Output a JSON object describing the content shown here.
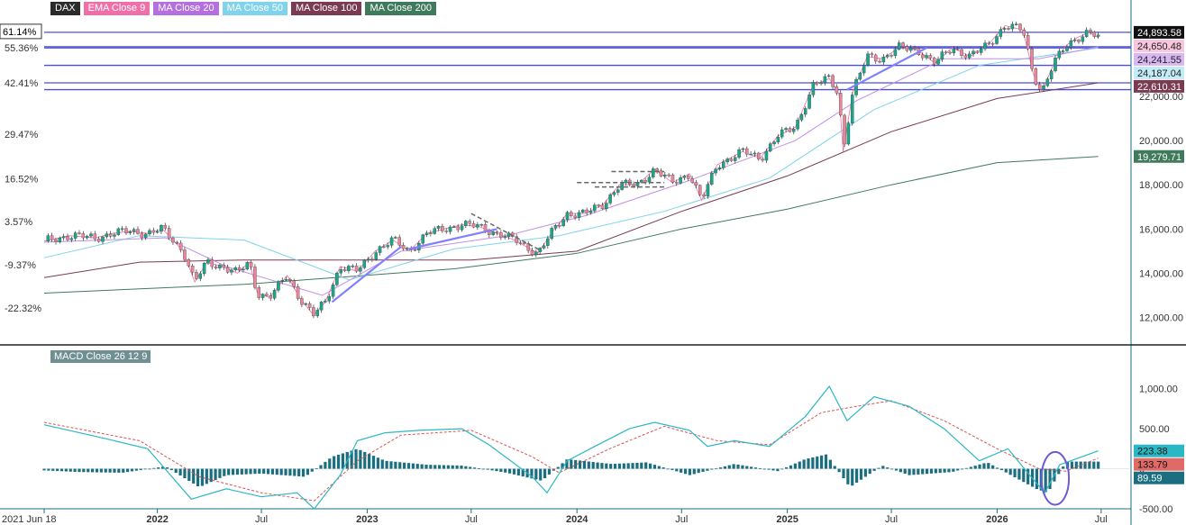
{
  "legend": [
    {
      "label": "DAX",
      "color": "#2b2b2b"
    },
    {
      "label": "EMA Close 9",
      "color": "#ef6fa8"
    },
    {
      "label": "MA Close 20",
      "color": "#b46fe0"
    },
    {
      "label": "MA Close 50",
      "color": "#7fd3ea"
    },
    {
      "label": "MA Close 100",
      "color": "#7a3b52"
    },
    {
      "label": "MA Close 200",
      "color": "#3f7a5c"
    }
  ],
  "macd_legend": "MACD  Close 26 12 9",
  "colors": {
    "up_candle": "#19a689",
    "down_candle": "#e8879a",
    "level_line": "#4b4fd6",
    "trend_line": "#8080ff",
    "dashed": "#666666",
    "macd_line": "#2bb7c4",
    "signal_line": "#d9534f",
    "histogram": "#1a6e80",
    "axis": "#1a6e80"
  },
  "chart_data": [
    {
      "type": "candlestick",
      "title": "DAX",
      "x_ticks": [
        "2021 Jun 18",
        "2022",
        "Jul",
        "2023",
        "Jul",
        "2024",
        "Jul",
        "2025",
        "Jul",
        "2026",
        "Jul"
      ],
      "x_tick_dates": [
        "2021-06-18",
        "2022-01-01",
        "2022-07-01",
        "2023-01-01",
        "2023-07-01",
        "2024-01-01",
        "2024-07-01",
        "2025-01-01",
        "2025-07-01",
        "2026-01-01",
        "2026-07-01"
      ],
      "x_range": [
        "2021-06-18",
        "2026-08-22"
      ],
      "y_range": [
        10800,
        25500
      ],
      "y_ticks_right": [
        "22,000.00",
        "20,000.00",
        "18,000.00",
        "16,000.00",
        "14,000.00",
        "12,000.00"
      ],
      "y_tick_values": [
        22000,
        20000,
        18000,
        16000,
        14000,
        12000
      ],
      "pct_ticks_left": [
        "61.14%",
        "55.36%",
        "42.41%",
        "29.47%",
        "16.52%",
        "3.57%",
        "-9.37%",
        "-22.32%"
      ],
      "pct_tick_values": [
        24893.58,
        24187.04,
        22610.31,
        20279.71,
        18281.0,
        16330.0,
        14380.0,
        12425.0
      ],
      "horizontal_levels": [
        24893.58,
        24241.55,
        24187.04,
        23400,
        22610.31,
        22300
      ],
      "price_labels": [
        {
          "text": "24,893.58",
          "value": 24893.58,
          "bg": "#111111",
          "fg": "#ffffff"
        },
        {
          "text": "24,650.48",
          "value": 24650.48,
          "bg": "#f7c6dc",
          "fg": "#222222"
        },
        {
          "text": "24,241.55",
          "value": 24241.55,
          "bg": "#d9b7f3",
          "fg": "#222222"
        },
        {
          "text": "24,187.04",
          "value": 24187.04,
          "bg": "#c4ecf7",
          "fg": "#222222"
        },
        {
          "text": "22,610.31",
          "value": 22610.31,
          "bg": "#7a3b52",
          "fg": "#ffffff"
        },
        {
          "text": "19,279.71",
          "value": 19279.71,
          "bg": "#3f7a5c",
          "fg": "#ffffff"
        }
      ],
      "close_series": [
        [
          "2021-06-18",
          15450
        ],
        [
          "2021-08-01",
          15700
        ],
        [
          "2021-09-15",
          15600
        ],
        [
          "2021-10-15",
          15800
        ],
        [
          "2021-11-15",
          15900
        ],
        [
          "2021-12-15",
          15800
        ],
        [
          "2022-01-10",
          16000
        ],
        [
          "2022-02-15",
          15000
        ],
        [
          "2022-03-07",
          13600
        ],
        [
          "2022-03-28",
          14500
        ],
        [
          "2022-04-25",
          14300
        ],
        [
          "2022-05-20",
          14000
        ],
        [
          "2022-06-10",
          14500
        ],
        [
          "2022-06-24",
          13100
        ],
        [
          "2022-07-15",
          12900
        ],
        [
          "2022-08-15",
          13900
        ],
        [
          "2022-09-05",
          12900
        ],
        [
          "2022-09-30",
          12100
        ],
        [
          "2022-10-20",
          12700
        ],
        [
          "2022-11-15",
          14300
        ],
        [
          "2022-12-15",
          14100
        ],
        [
          "2023-01-15",
          15000
        ],
        [
          "2023-02-15",
          15500
        ],
        [
          "2023-03-15",
          15000
        ],
        [
          "2023-04-15",
          15800
        ],
        [
          "2023-05-15",
          16000
        ],
        [
          "2023-06-15",
          16200
        ],
        [
          "2023-07-15",
          16100
        ],
        [
          "2023-08-15",
          15800
        ],
        [
          "2023-09-15",
          15500
        ],
        [
          "2023-10-25",
          14900
        ],
        [
          "2023-11-20",
          15900
        ],
        [
          "2023-12-15",
          16700
        ],
        [
          "2024-01-15",
          16700
        ],
        [
          "2024-02-15",
          17100
        ],
        [
          "2024-03-15",
          18000
        ],
        [
          "2024-04-15",
          18000
        ],
        [
          "2024-05-15",
          18700
        ],
        [
          "2024-06-15",
          18100
        ],
        [
          "2024-07-15",
          18500
        ],
        [
          "2024-08-05",
          17300
        ],
        [
          "2024-09-01",
          18900
        ],
        [
          "2024-10-15",
          19500
        ],
        [
          "2024-11-15",
          19200
        ],
        [
          "2024-12-15",
          20200
        ],
        [
          "2025-01-15",
          20600
        ],
        [
          "2025-02-15",
          22500
        ],
        [
          "2025-03-15",
          22800
        ],
        [
          "2025-04-01",
          22100
        ],
        [
          "2025-04-08",
          19500
        ],
        [
          "2025-04-25",
          22200
        ],
        [
          "2025-05-20",
          23800
        ],
        [
          "2025-06-15",
          23700
        ],
        [
          "2025-07-15",
          24200
        ],
        [
          "2025-08-15",
          24100
        ],
        [
          "2025-09-15",
          23500
        ],
        [
          "2025-10-15",
          24200
        ],
        [
          "2025-11-15",
          23800
        ],
        [
          "2025-12-15",
          24300
        ],
        [
          "2026-01-15",
          25200
        ],
        [
          "2026-02-15",
          25000
        ],
        [
          "2026-03-05",
          23000
        ],
        [
          "2026-03-20",
          22200
        ],
        [
          "2026-04-10",
          23500
        ],
        [
          "2026-05-01",
          24300
        ],
        [
          "2026-05-20",
          24650
        ],
        [
          "2026-06-10",
          24893.58
        ],
        [
          "2026-06-26",
          24650.48
        ]
      ],
      "moving_averages": [
        {
          "name": "MA Close 200",
          "points": [
            [
              "2021-06-18",
              13100
            ],
            [
              "2022-06-01",
              13500
            ],
            [
              "2023-06-01",
              14200
            ],
            [
              "2024-01-01",
              14900
            ],
            [
              "2024-07-01",
              16000
            ],
            [
              "2025-01-01",
              16900
            ],
            [
              "2025-07-01",
              18000
            ],
            [
              "2026-01-01",
              19000
            ],
            [
              "2026-06-26",
              19279.71
            ]
          ]
        },
        {
          "name": "MA Close 100",
          "points": [
            [
              "2021-06-18",
              13800
            ],
            [
              "2021-12-01",
              14500
            ],
            [
              "2022-06-01",
              14600
            ],
            [
              "2023-01-01",
              14600
            ],
            [
              "2023-07-01",
              14600
            ],
            [
              "2024-01-01",
              15000
            ],
            [
              "2024-07-01",
              16800
            ],
            [
              "2025-01-01",
              18400
            ],
            [
              "2025-07-01",
              20400
            ],
            [
              "2026-01-01",
              21900
            ],
            [
              "2026-06-26",
              22610.31
            ]
          ]
        },
        {
          "name": "MA Close 50",
          "points": [
            [
              "2021-06-18",
              14700
            ],
            [
              "2021-12-01",
              15700
            ],
            [
              "2022-06-01",
              15500
            ],
            [
              "2022-12-01",
              13700
            ],
            [
              "2023-06-01",
              15100
            ],
            [
              "2023-12-01",
              15700
            ],
            [
              "2024-06-01",
              16800
            ],
            [
              "2024-12-01",
              18300
            ],
            [
              "2025-06-01",
              21400
            ],
            [
              "2025-12-01",
              23400
            ],
            [
              "2026-06-26",
              24187.04
            ]
          ]
        },
        {
          "name": "MA Close 20",
          "points": [
            [
              "2021-06-18",
              15400
            ],
            [
              "2022-01-15",
              15600
            ],
            [
              "2022-05-01",
              14300
            ],
            [
              "2022-10-15",
              13000
            ],
            [
              "2023-03-01",
              15000
            ],
            [
              "2023-09-01",
              15700
            ],
            [
              "2024-01-15",
              16600
            ],
            [
              "2024-07-15",
              18200
            ],
            [
              "2025-01-15",
              20000
            ],
            [
              "2025-05-01",
              21800
            ],
            [
              "2025-10-01",
              23700
            ],
            [
              "2026-03-15",
              23700
            ],
            [
              "2026-06-26",
              24241.55
            ]
          ]
        }
      ],
      "trend_lines": [
        {
          "from": [
            "2022-11-01",
            12700
          ],
          "to": [
            "2023-03-01",
            15200
          ],
          "style": "solid"
        },
        {
          "from": [
            "2023-03-15",
            15100
          ],
          "to": [
            "2023-08-15",
            16000
          ],
          "style": "solid"
        },
        {
          "from": [
            "2025-04-15",
            22300
          ],
          "to": [
            "2025-09-01",
            24200
          ],
          "style": "solid"
        },
        {
          "from": [
            "2023-07-01",
            16700
          ],
          "to": [
            "2023-11-01",
            15000
          ],
          "style": "dashed"
        },
        {
          "from": [
            "2024-01-01",
            18100
          ],
          "to": [
            "2024-06-01",
            18100
          ],
          "style": "dashed"
        },
        {
          "from": [
            "2024-03-01",
            18600
          ],
          "to": [
            "2024-06-01",
            18600
          ],
          "style": "dashed"
        },
        {
          "from": [
            "2024-02-01",
            17900
          ],
          "to": [
            "2024-06-01",
            17900
          ],
          "style": "dashed"
        }
      ]
    },
    {
      "type": "macd",
      "title": "MACD  Close 26 12 9",
      "y_range": [
        -500,
        1300
      ],
      "y_ticks_right": [
        "1,000.00",
        "500.00",
        "0",
        "-500.00"
      ],
      "y_tick_values": [
        1000,
        500,
        0,
        -500
      ],
      "labels": [
        {
          "text": "223.38",
          "value": 223.38,
          "bg": "#2bb7c4",
          "fg": "#111111"
        },
        {
          "text": "133.79",
          "value": 133.79,
          "bg": "#e06a66",
          "fg": "#111111"
        },
        {
          "text": "89.59",
          "value": 89.59,
          "bg": "#1a6e80",
          "fg": "#ffffff"
        }
      ],
      "macd_series": [
        [
          "2021-06-18",
          550
        ],
        [
          "2021-10-01",
          380
        ],
        [
          "2021-12-15",
          250
        ],
        [
          "2022-03-01",
          -380
        ],
        [
          "2022-05-01",
          -250
        ],
        [
          "2022-07-01",
          -350
        ],
        [
          "2022-09-01",
          -300
        ],
        [
          "2022-10-01",
          -500
        ],
        [
          "2022-11-15",
          -80
        ],
        [
          "2022-12-15",
          350
        ],
        [
          "2023-02-01",
          450
        ],
        [
          "2023-04-01",
          480
        ],
        [
          "2023-06-15",
          500
        ],
        [
          "2023-08-01",
          300
        ],
        [
          "2023-10-15",
          -100
        ],
        [
          "2023-11-10",
          -300
        ],
        [
          "2023-12-15",
          100
        ],
        [
          "2024-02-01",
          280
        ],
        [
          "2024-04-01",
          500
        ],
        [
          "2024-05-15",
          580
        ],
        [
          "2024-07-15",
          480
        ],
        [
          "2024-08-15",
          280
        ],
        [
          "2024-10-01",
          350
        ],
        [
          "2024-12-01",
          280
        ],
        [
          "2025-02-01",
          650
        ],
        [
          "2025-03-15",
          1030
        ],
        [
          "2025-04-15",
          600
        ],
        [
          "2025-06-01",
          900
        ],
        [
          "2025-08-01",
          780
        ],
        [
          "2025-10-01",
          500
        ],
        [
          "2025-12-01",
          100
        ],
        [
          "2026-01-20",
          250
        ],
        [
          "2026-03-01",
          -100
        ],
        [
          "2026-03-25",
          -300
        ],
        [
          "2026-04-20",
          50
        ],
        [
          "2026-06-26",
          223.38
        ]
      ],
      "signal_series": [
        [
          "2021-06-18",
          580
        ],
        [
          "2021-12-01",
          350
        ],
        [
          "2022-03-15",
          -100
        ],
        [
          "2022-07-01",
          -300
        ],
        [
          "2022-10-01",
          -400
        ],
        [
          "2022-12-15",
          100
        ],
        [
          "2023-03-01",
          420
        ],
        [
          "2023-07-01",
          480
        ],
        [
          "2023-10-15",
          150
        ],
        [
          "2023-12-01",
          -50
        ],
        [
          "2024-03-01",
          260
        ],
        [
          "2024-06-01",
          530
        ],
        [
          "2024-09-01",
          350
        ],
        [
          "2024-12-01",
          300
        ],
        [
          "2025-03-01",
          700
        ],
        [
          "2025-05-01",
          780
        ],
        [
          "2025-07-01",
          850
        ],
        [
          "2025-10-01",
          600
        ],
        [
          "2026-01-01",
          250
        ],
        [
          "2026-03-15",
          0
        ],
        [
          "2026-05-01",
          -30
        ],
        [
          "2026-06-26",
          133.79
        ]
      ],
      "histogram": [
        [
          "2021-06-18",
          -20
        ],
        [
          "2021-08-15",
          -40
        ],
        [
          "2021-11-01",
          -50
        ],
        [
          "2022-01-15",
          30
        ],
        [
          "2022-03-15",
          -230
        ],
        [
          "2022-05-01",
          -80
        ],
        [
          "2022-07-01",
          -60
        ],
        [
          "2022-09-15",
          -100
        ],
        [
          "2022-11-01",
          150
        ],
        [
          "2022-12-15",
          250
        ],
        [
          "2023-02-01",
          100
        ],
        [
          "2023-04-15",
          50
        ],
        [
          "2023-06-15",
          40
        ],
        [
          "2023-09-01",
          -50
        ],
        [
          "2023-11-01",
          -150
        ],
        [
          "2023-12-15",
          120
        ],
        [
          "2024-03-01",
          60
        ],
        [
          "2024-05-01",
          80
        ],
        [
          "2024-07-15",
          -80
        ],
        [
          "2024-10-01",
          60
        ],
        [
          "2024-12-15",
          -30
        ],
        [
          "2025-02-01",
          120
        ],
        [
          "2025-03-10",
          180
        ],
        [
          "2025-04-20",
          -230
        ],
        [
          "2025-06-15",
          40
        ],
        [
          "2025-08-01",
          -80
        ],
        [
          "2025-10-15",
          -40
        ],
        [
          "2025-12-15",
          80
        ],
        [
          "2026-03-10",
          -250
        ],
        [
          "2026-03-30",
          -300
        ],
        [
          "2026-05-01",
          90
        ],
        [
          "2026-06-26",
          89.59
        ]
      ],
      "annotation_ellipse": {
        "center": [
          "2026-04-12",
          -120
        ],
        "rx_days": 24,
        "ry_value": 330
      }
    }
  ]
}
